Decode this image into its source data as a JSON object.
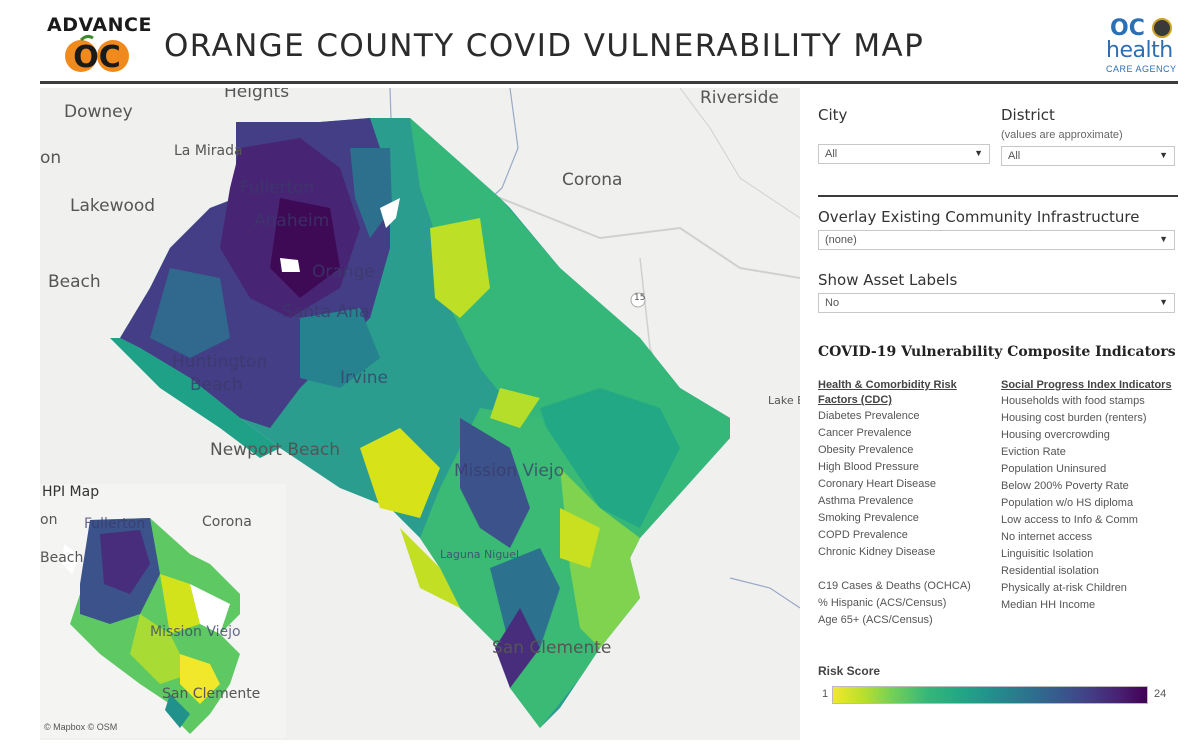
{
  "header": {
    "logo_left_text": "ADVANCE",
    "logo_left_sub": "OC",
    "title": "ORANGE COUNTY COVID VULNERABILITY MAP",
    "logo_right_oc": "OC",
    "logo_right_health": "health",
    "logo_right_sub": "CARE AGENCY"
  },
  "map": {
    "labels": {
      "heights": "Heights",
      "riverside": "Riverside",
      "downey": "Downey",
      "on": "on",
      "la_mirada": "La Mirada",
      "fullerton": "Fullerton",
      "corona": "Corona",
      "lakewood": "Lakewood",
      "anaheim": "Anaheim",
      "beach": "Beach",
      "orange": "Orange",
      "santa_ana": "Santa Ana",
      "huntington_beach_1": "Huntington",
      "huntington_beach_2": "Beach",
      "irvine": "Irvine",
      "lake_e": "Lake E",
      "newport_beach": "Newport Beach",
      "mission_viejo": "Mission Viejo",
      "laguna_niguel": "Laguna Niguel",
      "san_clemente": "San Clemente",
      "highway": "15"
    },
    "attribution": "© Mapbox  © OSM",
    "inset": {
      "title": "HPI Map",
      "labels": {
        "on": "on",
        "fullerton": "Fullerton",
        "corona": "Corona",
        "beach": "Beach",
        "mission_viejo": "Mission Viejo",
        "san_clemente": "San Clemente"
      }
    }
  },
  "filters": {
    "city": {
      "label": "City",
      "value": "All"
    },
    "district": {
      "label": "District",
      "note": "(values are approximate)",
      "value": "All"
    },
    "overlay": {
      "label": "Overlay Existing Community Infrastructure",
      "value": "(none)"
    },
    "asset_labels": {
      "label": "Show Asset Labels",
      "value": "No"
    }
  },
  "indicators": {
    "title": "COVID-19 Vulnerability Composite Indicators",
    "health": {
      "heading_line1": "Health & Comorbidity Risk",
      "heading_line2": "Factors (CDC)",
      "items": [
        "Diabetes Prevalence",
        "Cancer Prevalence",
        "Obesity Prevalence",
        "High Blood Pressure",
        "Coronary Heart Disease",
        "Asthma Prevalence",
        "Smoking Prevalence",
        "COPD Prevalence",
        "Chronic Kidney Disease"
      ],
      "extra": [
        "C19 Cases & Deaths (OCHCA)",
        "% Hispanic (ACS/Census)",
        "Age 65+ (ACS/Census)"
      ]
    },
    "social": {
      "heading": "Social Progress Index Indicators",
      "items": [
        "Households with food stamps",
        "Housing cost burden (renters)",
        "Housing overcrowding",
        "Eviction Rate",
        "Population Uninsured",
        "Below 200% Poverty Rate",
        "Population w/o HS diploma",
        "Low access to Info & Comm",
        "No internet access",
        "Linguisitic Isolation",
        "Residential isolation",
        "Physically at-risk Children",
        "Median HH Income"
      ]
    }
  },
  "legend": {
    "label": "Risk Score",
    "min": "1",
    "max": "24",
    "colors": [
      "#f1e82b",
      "#6cce5b",
      "#21918c",
      "#414487",
      "#440154"
    ]
  }
}
